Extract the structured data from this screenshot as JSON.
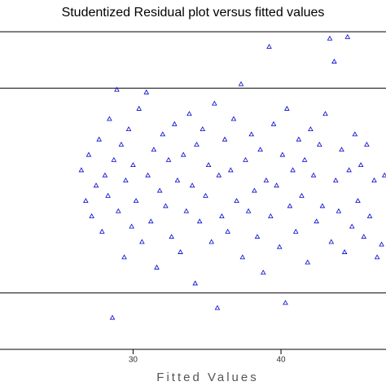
{
  "chart_data": {
    "type": "scatter",
    "title": "Studentized Residual plot versus fitted values",
    "x_label": "Fitted Values",
    "color": "#0000cc",
    "xlim": [
      21,
      47.1
    ],
    "ylim": [
      -3.1,
      3.1
    ],
    "xticks": [
      30,
      40
    ],
    "hlines": [
      -2,
      2
    ],
    "x": [
      26.5,
      26.8,
      27.0,
      27.2,
      27.5,
      27.7,
      27.9,
      28.1,
      28.3,
      28.4,
      28.6,
      28.7,
      28.9,
      29.0,
      29.2,
      29.4,
      29.5,
      29.7,
      29.9,
      30.0,
      30.2,
      30.4,
      30.6,
      30.9,
      31.0,
      31.2,
      31.4,
      31.6,
      31.8,
      32.0,
      32.2,
      32.4,
      32.6,
      32.8,
      33.0,
      33.2,
      33.4,
      33.6,
      33.8,
      34.0,
      34.2,
      34.3,
      34.5,
      34.7,
      34.9,
      35.1,
      35.3,
      35.5,
      35.7,
      35.8,
      36.0,
      36.2,
      36.4,
      36.6,
      36.8,
      37.0,
      37.3,
      37.4,
      37.6,
      37.8,
      38.0,
      38.2,
      38.4,
      38.6,
      38.8,
      39.0,
      39.2,
      39.3,
      39.5,
      39.7,
      39.9,
      40.1,
      40.3,
      40.4,
      40.6,
      40.8,
      41.0,
      41.2,
      41.4,
      41.6,
      41.8,
      42.0,
      42.2,
      42.4,
      42.6,
      42.8,
      43.0,
      43.3,
      43.4,
      43.6,
      43.7,
      43.9,
      44.1,
      44.3,
      44.5,
      44.6,
      44.8,
      45.0,
      45.2,
      45.4,
      45.6,
      45.8,
      46.0,
      46.3,
      46.5,
      46.8,
      47.0
    ],
    "values": [
      0.4,
      -0.2,
      0.7,
      -0.5,
      0.1,
      1.0,
      -0.8,
      0.3,
      -0.1,
      1.4,
      -2.48,
      0.6,
      1.97,
      -0.4,
      0.9,
      -1.3,
      0.2,
      1.2,
      -0.7,
      0.5,
      -0.2,
      1.6,
      -1.0,
      1.92,
      0.3,
      -0.6,
      0.8,
      -1.5,
      0.0,
      1.1,
      -0.3,
      0.6,
      -0.9,
      1.3,
      0.2,
      -1.2,
      0.7,
      -0.4,
      1.5,
      0.1,
      -1.81,
      0.9,
      -0.6,
      1.2,
      -0.1,
      0.5,
      -1.0,
      1.7,
      -2.29,
      0.3,
      -0.5,
      1.0,
      -0.8,
      0.4,
      1.4,
      -0.2,
      2.08,
      -1.3,
      0.6,
      -0.4,
      1.1,
      0.0,
      -0.9,
      0.8,
      -1.6,
      0.2,
      2.81,
      -0.5,
      1.3,
      0.1,
      -1.1,
      0.7,
      -2.19,
      1.6,
      -0.3,
      0.4,
      -0.8,
      1.0,
      -0.1,
      0.6,
      -1.4,
      1.2,
      0.3,
      -0.6,
      0.9,
      -0.3,
      1.5,
      2.97,
      -1.0,
      2.52,
      0.2,
      -0.4,
      0.8,
      -1.2,
      3.0,
      0.4,
      -0.7,
      1.1,
      -0.2,
      0.5,
      -0.9,
      0.9,
      -0.5,
      0.2,
      -1.3,
      -1.05,
      0.3
    ]
  }
}
